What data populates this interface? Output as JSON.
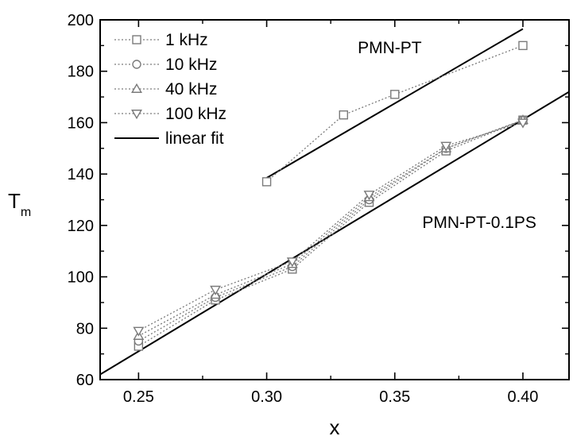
{
  "chart_data": {
    "type": "line",
    "title": "",
    "xlabel": "x",
    "ylabel": "T",
    "ylabel_sub": "m",
    "xlim": [
      0.235,
      0.418
    ],
    "ylim": [
      60,
      200
    ],
    "x_ticks": [
      0.25,
      0.3,
      0.35,
      0.4
    ],
    "x_tick_labels": [
      "0.25",
      "0.30",
      "0.35",
      "0.40"
    ],
    "y_ticks": [
      60,
      80,
      100,
      120,
      140,
      160,
      180,
      200
    ],
    "y_tick_labels": [
      "60",
      "80",
      "100",
      "120",
      "140",
      "160",
      "180",
      "200"
    ],
    "grid": false,
    "legend_position": "top-left",
    "series": [
      {
        "name": "1 kHz",
        "marker": "square",
        "group": "PMN-PT",
        "x": [
          0.3,
          0.33,
          0.35,
          0.4
        ],
        "y": [
          137,
          163,
          171,
          190
        ]
      },
      {
        "name": "1 kHz",
        "marker": "square",
        "group": "PMN-PT-0.1PS",
        "x": [
          0.25,
          0.28,
          0.31,
          0.34,
          0.37,
          0.4
        ],
        "y": [
          73,
          91,
          103,
          129,
          149,
          161
        ]
      },
      {
        "name": "10 kHz",
        "marker": "circle",
        "group": "PMN-PT-0.1PS",
        "x": [
          0.25,
          0.28,
          0.31,
          0.34,
          0.37,
          0.4
        ],
        "y": [
          75,
          92,
          104,
          130,
          150,
          161
        ]
      },
      {
        "name": "40 kHz",
        "marker": "triangle-up",
        "group": "PMN-PT-0.1PS",
        "x": [
          0.25,
          0.28,
          0.31,
          0.34,
          0.37,
          0.4
        ],
        "y": [
          77,
          93,
          105,
          131,
          150,
          161
        ]
      },
      {
        "name": "100 kHz",
        "marker": "triangle-down",
        "group": "PMN-PT-0.1PS",
        "x": [
          0.25,
          0.28,
          0.31,
          0.34,
          0.37,
          0.4
        ],
        "y": [
          79,
          95,
          106,
          132,
          151,
          160
        ]
      }
    ],
    "fits": [
      {
        "name": "linear fit",
        "group": "PMN-PT",
        "x": [
          0.3,
          0.4
        ],
        "y": [
          138.5,
          196.5
        ]
      },
      {
        "name": "linear fit",
        "group": "PMN-PT-0.1PS",
        "x": [
          0.235,
          0.418
        ],
        "y": [
          62,
          172
        ]
      }
    ],
    "legend": [
      {
        "label": "1 kHz",
        "marker": "square",
        "line": "dotted"
      },
      {
        "label": "10 kHz",
        "marker": "circle",
        "line": "dotted"
      },
      {
        "label": "40 kHz",
        "marker": "triangle-up",
        "line": "dotted"
      },
      {
        "label": "100 kHz",
        "marker": "triangle-down",
        "line": "dotted"
      },
      {
        "label": "linear fit",
        "marker": "none",
        "line": "solid"
      }
    ],
    "annotations": [
      {
        "text": "PMN-PT",
        "near_x": 0.348,
        "near_y": 187
      },
      {
        "text": "PMN-PT-0.1PS",
        "near_x": 0.383,
        "near_y": 119
      }
    ],
    "colors": {
      "data": "#7a7a7a",
      "fit": "#000000",
      "axis": "#000000"
    }
  }
}
